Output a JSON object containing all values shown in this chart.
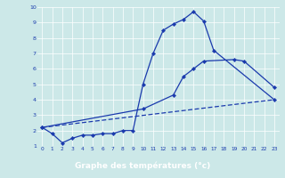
{
  "xlabel": "Graphe des températures (°c)",
  "xlim": [
    -0.5,
    23.5
  ],
  "ylim": [
    1,
    10
  ],
  "yticks": [
    1,
    2,
    3,
    4,
    5,
    6,
    7,
    8,
    9,
    10
  ],
  "xticks": [
    0,
    1,
    2,
    3,
    4,
    5,
    6,
    7,
    8,
    9,
    10,
    11,
    12,
    13,
    14,
    15,
    16,
    17,
    18,
    19,
    20,
    21,
    22,
    23
  ],
  "bg_color": "#cce8e8",
  "line_color": "#1a3aad",
  "label_bg": "#2244bb",
  "line1_x": [
    0,
    1,
    2,
    3,
    4,
    5,
    6,
    7,
    8,
    9,
    10,
    11,
    12,
    13,
    14,
    15,
    16,
    17,
    23
  ],
  "line1_y": [
    2.2,
    1.8,
    1.2,
    1.5,
    1.7,
    1.7,
    1.8,
    1.8,
    2.0,
    2.0,
    5.0,
    7.0,
    8.5,
    8.9,
    9.2,
    9.7,
    9.1,
    7.2,
    4.0
  ],
  "line2_x": [
    0,
    10,
    13,
    14,
    15,
    16,
    19,
    20,
    23
  ],
  "line2_y": [
    2.2,
    3.4,
    4.3,
    5.5,
    6.0,
    6.5,
    6.6,
    6.5,
    4.8
  ],
  "line3_x": [
    0,
    23
  ],
  "line3_y": [
    2.2,
    4.0
  ],
  "marker": "D",
  "marker_size": 2.2,
  "line_width": 0.9
}
